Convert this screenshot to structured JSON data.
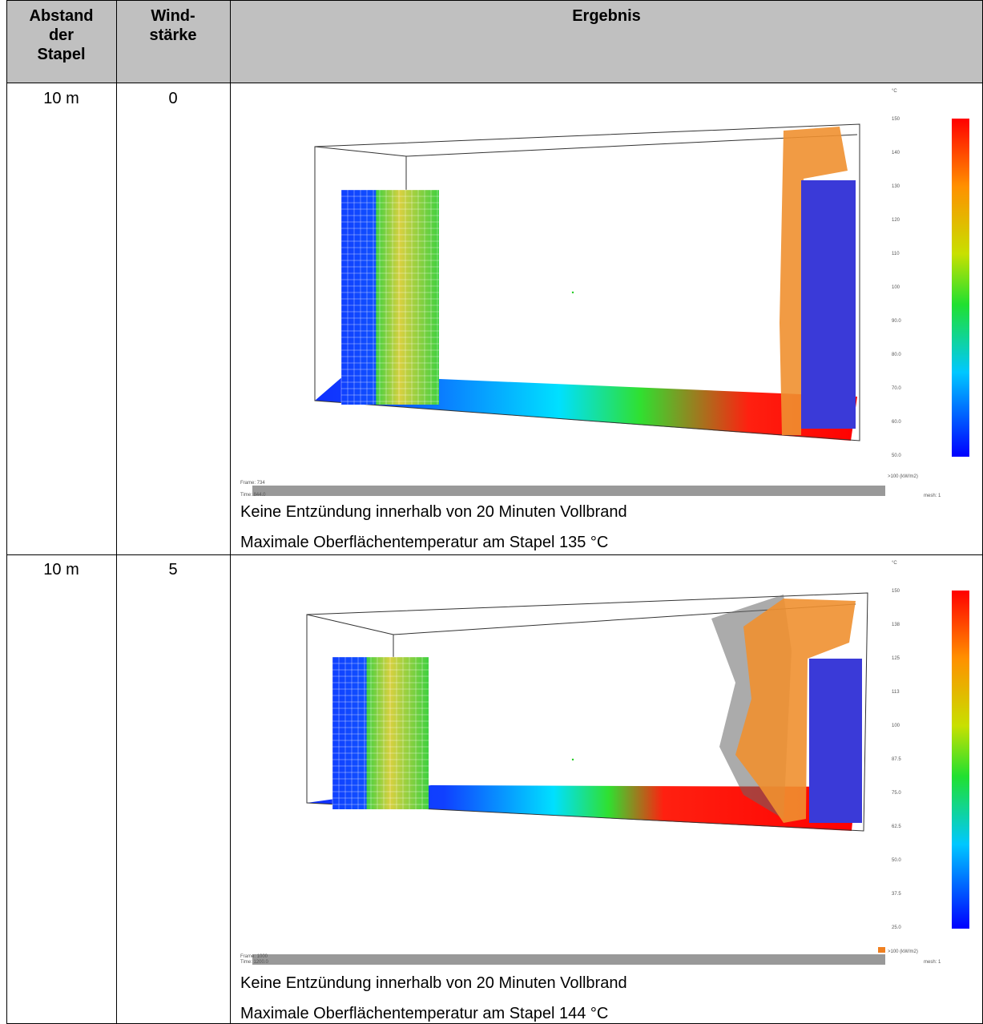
{
  "table": {
    "header": [
      [
        "Abstand",
        "der",
        "Stapel"
      ],
      [
        "Wind-",
        "stärke"
      ],
      [
        "Ergebnis"
      ]
    ],
    "rows": [
      {
        "distance": "10 m",
        "wind": "0",
        "image": {
          "unit": "°C",
          "scale": [
            "150",
            "140",
            "130",
            "120",
            "110",
            "100",
            "90.0",
            "80.0",
            "70.0",
            "60.0",
            "50.0"
          ],
          "flux_label": ">100 (kW/m2)",
          "frame": "Frame: 734",
          "time": "Time: 844.0",
          "mesh": "mesh: 1"
        },
        "result": [
          "Keine Entzündung innerhalb von 20 Minuten Vollbrand",
          "Maximale Oberflächentemperatur am Stapel 135 °C"
        ]
      },
      {
        "distance": "10 m",
        "wind": "5",
        "image": {
          "unit": "°C",
          "scale": [
            "150",
            "138",
            "125",
            "113",
            "100",
            "87.5",
            "75.0",
            "62.5",
            "50.0",
            "37.5",
            "25.0"
          ],
          "flux_label": ">100 (kW/m2)",
          "frame": "Frame: 1000",
          "time": "Time: 1200.0",
          "mesh": "mesh: 1"
        },
        "result": [
          "Keine Entzündung innerhalb von 20 Minuten Vollbrand",
          "Maximale Oberflächentemperatur am Stapel 144 °C"
        ]
      }
    ]
  }
}
